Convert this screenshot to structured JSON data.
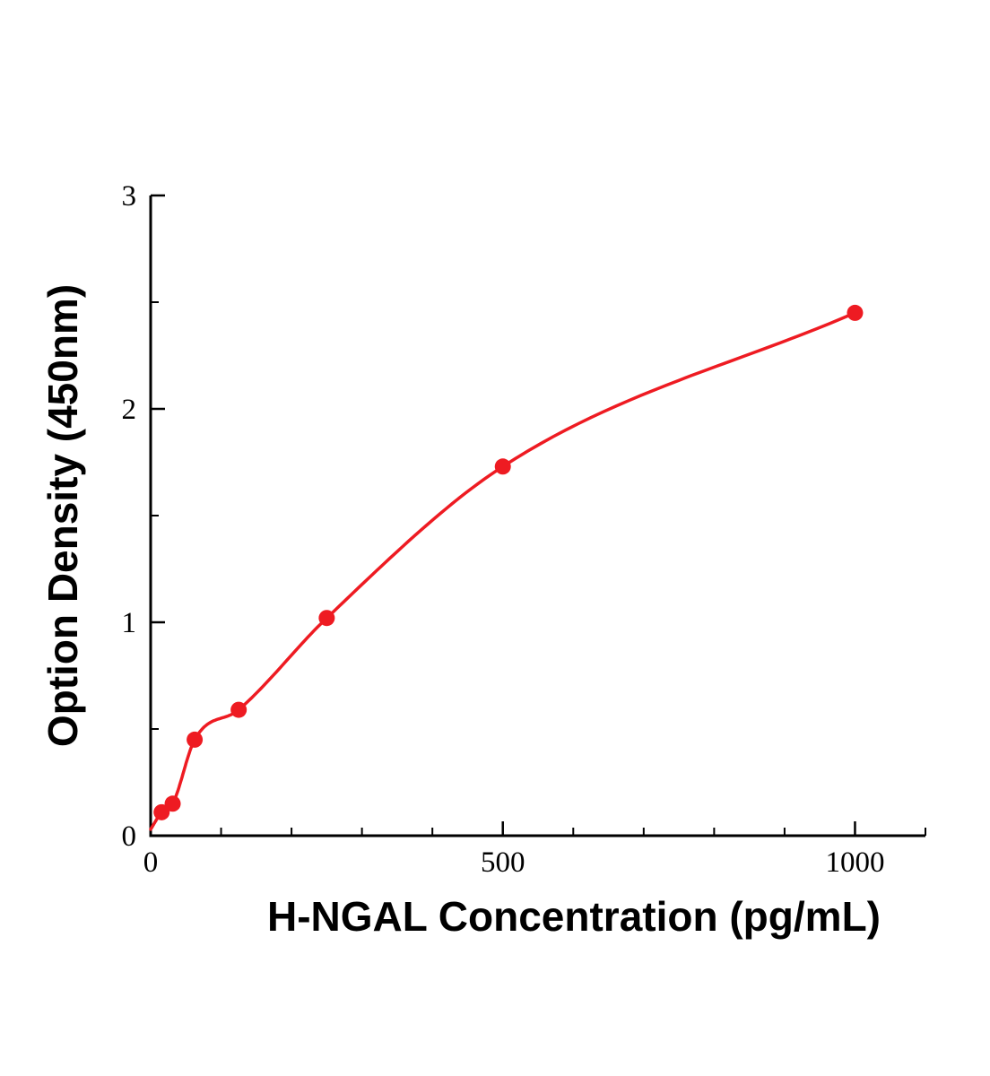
{
  "chart_data": {
    "type": "scatter",
    "title": "",
    "xlabel": "H-NGAL Concentration (pg/mL)",
    "ylabel": "Option Density (450nm)",
    "points": [
      {
        "x": 15.6,
        "y": 0.11
      },
      {
        "x": 31.25,
        "y": 0.15
      },
      {
        "x": 62.5,
        "y": 0.45
      },
      {
        "x": 125,
        "y": 0.59
      },
      {
        "x": 250,
        "y": 1.02
      },
      {
        "x": 500,
        "y": 1.73
      },
      {
        "x": 1000,
        "y": 2.45
      }
    ],
    "curve_start": {
      "x": 0,
      "y": 0.03
    },
    "xlim": [
      0,
      1100
    ],
    "ylim": [
      0,
      3
    ],
    "x_major_ticks": [
      0,
      500,
      1000
    ],
    "x_minor_step": 100,
    "y_major_ticks": [
      0,
      1,
      2,
      3
    ],
    "y_minor_step": 0.5,
    "grid": false,
    "legend": "none",
    "colors": {
      "points": "#ee1b22",
      "curve": "#ee1b22",
      "axis": "#000000",
      "text": "#000000"
    }
  }
}
